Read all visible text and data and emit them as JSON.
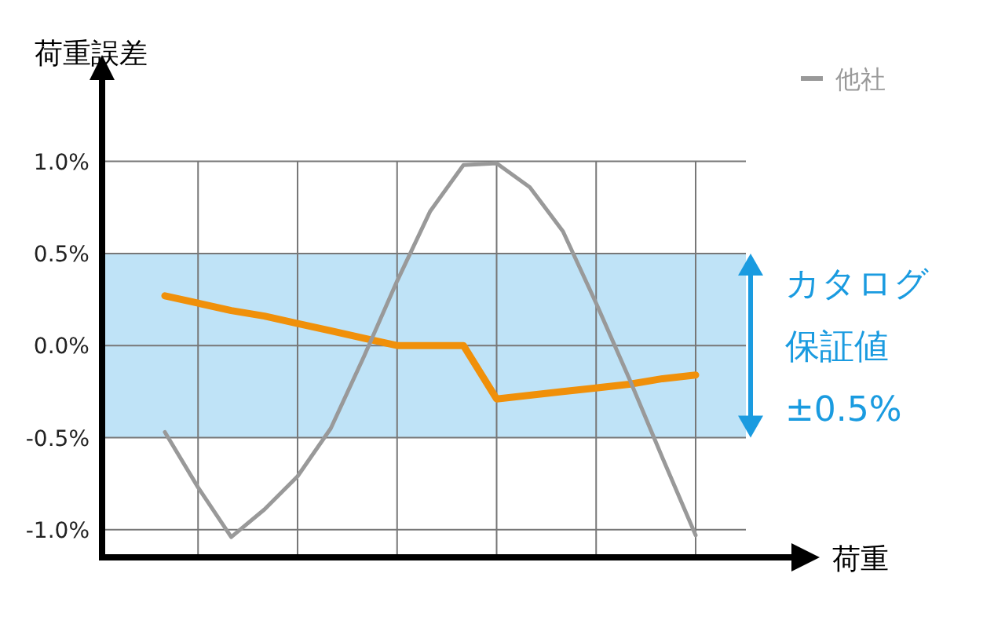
{
  "chart_data": {
    "type": "line",
    "ylabel": "荷重誤差",
    "xlabel": "荷重",
    "categories": [
      null,
      null,
      null,
      null,
      null,
      null,
      null,
      null,
      null,
      null,
      null,
      null,
      null,
      null,
      null,
      null,
      null
    ],
    "ylim": [
      -1.15,
      1.45
    ],
    "yticks": [
      {
        "value": -1,
        "label": "-1.0%"
      },
      {
        "value": -0.5,
        "label": "-0.5%"
      },
      {
        "value": 0,
        "label": "0.0%"
      },
      {
        "value": 0.5,
        "label": "0.5%"
      },
      {
        "value": 1,
        "label": "1.0%"
      }
    ],
    "tick_labels": "y",
    "grid": true,
    "legend": "top right",
    "bands": [
      {
        "axis": "y",
        "from": -0.5,
        "to": 0.5,
        "label": "カタログ保証値±0.5%",
        "color": "#bfe3f7"
      }
    ],
    "series": [
      {
        "color": "#f0900a",
        "values": [
          0.27,
          0.23,
          0.19,
          0.16,
          0.12,
          0.08,
          0.04,
          0.0,
          0.0,
          0.0,
          -0.29,
          -0.27,
          -0.25,
          -0.23,
          -0.21,
          -0.18,
          -0.16
        ]
      },
      {
        "name": "他社",
        "color": "#999999",
        "values": [
          -0.47,
          -0.77,
          -1.04,
          -0.89,
          -0.71,
          -0.45,
          -0.06,
          0.35,
          0.73,
          0.98,
          0.99,
          0.86,
          0.62,
          0.23,
          -0.18,
          -0.61,
          -1.03
        ]
      }
    ]
  }
}
